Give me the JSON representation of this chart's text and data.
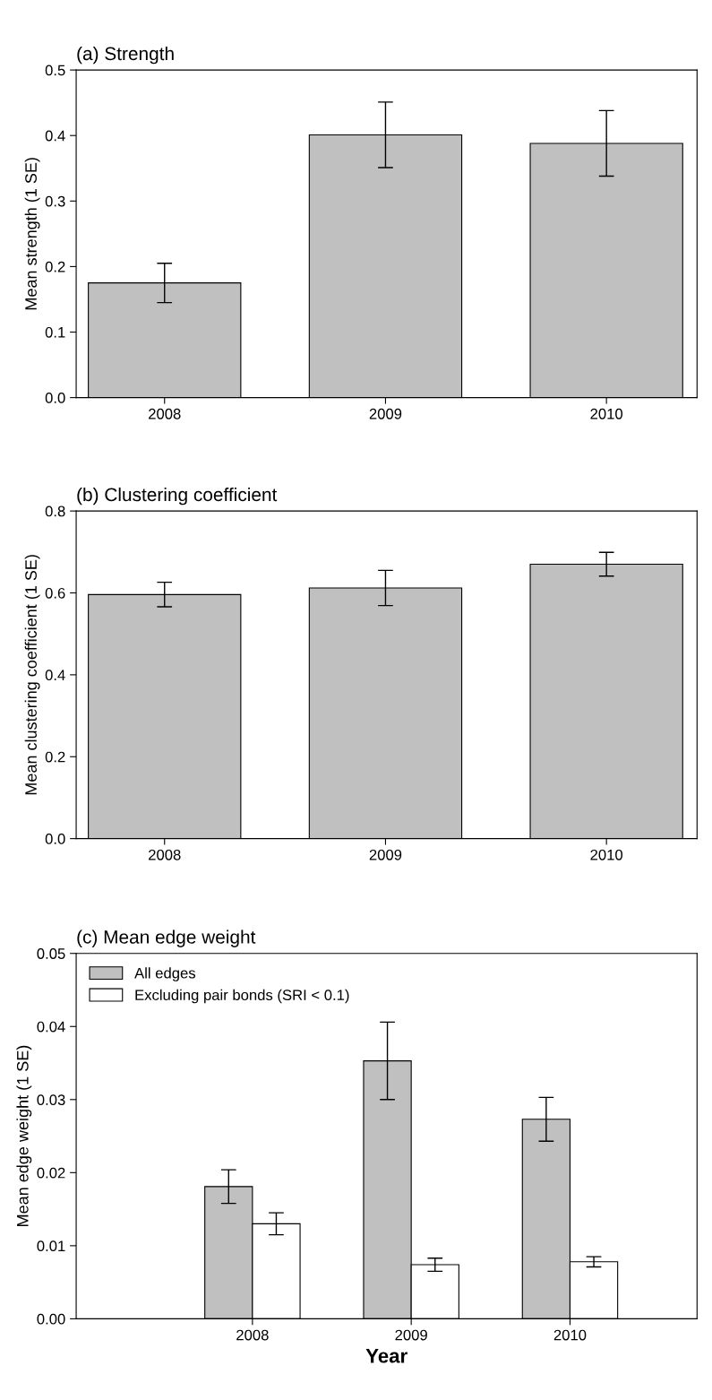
{
  "chart_data": [
    {
      "type": "bar",
      "title": "(a) Strength",
      "ylabel": "Mean strength (1 SE)",
      "categories": [
        "2008",
        "2009",
        "2010"
      ],
      "series": [
        {
          "color": "#c0c0c0",
          "values": [
            0.175,
            0.401,
            0.388
          ],
          "errors": [
            0.03,
            0.05,
            0.05
          ]
        }
      ],
      "ylim": [
        0,
        0.5
      ],
      "yticks": [
        {
          "value": 0,
          "label": "0.0"
        },
        {
          "value": 0.1,
          "label": "0.1"
        },
        {
          "value": 0.2,
          "label": "0.2"
        },
        {
          "value": 0.3,
          "label": "0.3"
        },
        {
          "value": 0.4,
          "label": "0.4"
        },
        {
          "value": 0.5,
          "label": "0.5"
        }
      ],
      "grid": false,
      "legend": false
    },
    {
      "type": "bar",
      "title": "(b) Clustering coefficient",
      "ylabel": "Mean clustering coefficient (1 SE)",
      "categories": [
        "2008",
        "2009",
        "2010"
      ],
      "series": [
        {
          "color": "#c0c0c0",
          "values": [
            0.596,
            0.612,
            0.67
          ],
          "errors": [
            0.03,
            0.043,
            0.029
          ]
        }
      ],
      "ylim": [
        0,
        0.8
      ],
      "yticks": [
        {
          "value": 0,
          "label": "0.0"
        },
        {
          "value": 0.2,
          "label": "0.2"
        },
        {
          "value": 0.4,
          "label": "0.4"
        },
        {
          "value": 0.6,
          "label": "0.6"
        },
        {
          "value": 0.8,
          "label": "0.8"
        }
      ],
      "grid": false,
      "legend": false
    },
    {
      "type": "bar",
      "title": "(c) Mean edge weight",
      "xlabel": "Year",
      "ylabel": "Mean edge weight (1 SE)",
      "categories": [
        "2008",
        "2009",
        "2010"
      ],
      "series": [
        {
          "name": "All edges",
          "color": "#c0c0c0",
          "values": [
            0.0181,
            0.0353,
            0.0273
          ],
          "errors": [
            0.0023,
            0.0053,
            0.003
          ]
        },
        {
          "name": "Excluding pair bonds (SRI < 0.1)",
          "color": "#ffffff",
          "values": [
            0.013,
            0.0074,
            0.0078
          ],
          "errors": [
            0.0015,
            0.0009,
            0.0007
          ]
        }
      ],
      "ylim": [
        0,
        0.05
      ],
      "yticks": [
        {
          "value": 0,
          "label": "0.00"
        },
        {
          "value": 0.01,
          "label": "0.01"
        },
        {
          "value": 0.02,
          "label": "0.02"
        },
        {
          "value": 0.03,
          "label": "0.03"
        },
        {
          "value": 0.04,
          "label": "0.04"
        },
        {
          "value": 0.05,
          "label": "0.05"
        }
      ],
      "grid": false,
      "legend": "top left"
    }
  ]
}
